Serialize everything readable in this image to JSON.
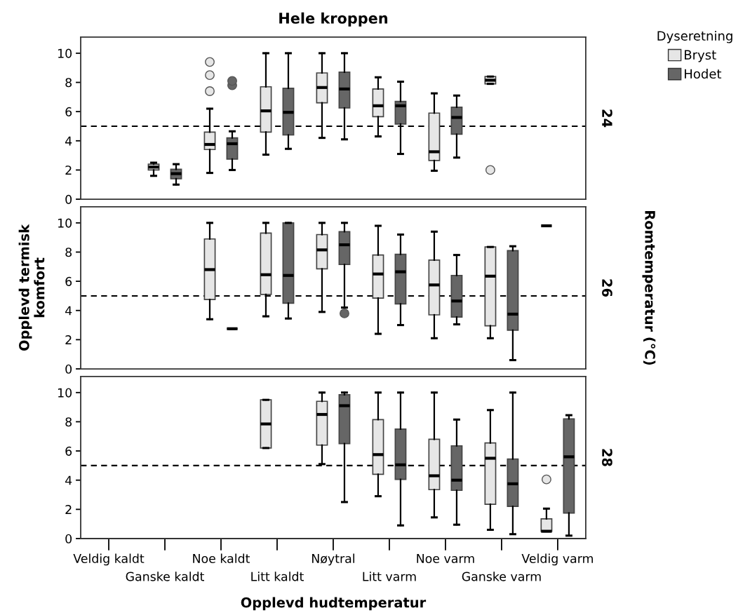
{
  "chart_data": [
    {
      "type": "box",
      "title": "Hele kroppen",
      "ylim": [
        0,
        11.1
      ],
      "yticks": [
        0,
        2,
        4,
        6,
        8,
        10
      ],
      "tick_labels": "y",
      "legend": "top right",
      "legend_title": "Dyseretning",
      "annotations": [
        "24"
      ],
      "ref_lines": [
        {
          "axis": "y",
          "value": 5,
          "line_style": "dashed",
          "color": "#000000"
        }
      ],
      "series": [
        {
          "name": "Bryst",
          "color": "#e6e6e6",
          "boxes": [
            null,
            {
              "low": 1.6,
              "q1": 2.0,
              "median": 2.2,
              "q3": 2.4,
              "high": 2.5
            },
            {
              "low": 1.8,
              "q1": 3.4,
              "median": 3.75,
              "q3": 4.6,
              "high": 6.2,
              "outliers": [
                7.4,
                8.5,
                9.4
              ]
            },
            {
              "low": 3.05,
              "q1": 4.6,
              "median": 6.05,
              "q3": 7.7,
              "high": 10
            },
            {
              "low": 4.2,
              "q1": 6.6,
              "median": 7.65,
              "q3": 8.65,
              "high": 10
            },
            {
              "low": 4.3,
              "q1": 5.65,
              "median": 6.4,
              "q3": 7.55,
              "high": 8.35
            },
            {
              "low": 1.95,
              "q1": 2.65,
              "median": 3.25,
              "q3": 5.9,
              "high": 7.25
            },
            {
              "low": 7.9,
              "q1": 7.9,
              "median": 8.15,
              "q3": 8.4,
              "high": 8.4,
              "outliers": [
                2.0
              ]
            },
            null
          ]
        },
        {
          "name": "Hodet",
          "color": "#666666",
          "boxes": [
            null,
            {
              "low": 1.0,
              "q1": 1.4,
              "median": 1.75,
              "q3": 2.05,
              "high": 2.4
            },
            {
              "low": 2.0,
              "q1": 2.75,
              "median": 3.8,
              "q3": 4.2,
              "high": 4.65,
              "outliers": [
                7.8,
                8.1
              ]
            },
            {
              "low": 3.45,
              "q1": 4.4,
              "median": 5.95,
              "q3": 7.6,
              "high": 10
            },
            {
              "low": 4.1,
              "q1": 6.25,
              "median": 7.55,
              "q3": 8.7,
              "high": 10
            },
            {
              "low": 3.1,
              "q1": 5.15,
              "median": 6.4,
              "q3": 6.7,
              "high": 8.05
            },
            {
              "low": 2.85,
              "q1": 4.45,
              "median": 5.6,
              "q3": 6.3,
              "high": 7.1
            },
            null,
            null
          ]
        }
      ]
    },
    {
      "type": "box",
      "ylim": [
        0,
        11.1
      ],
      "yticks": [
        0,
        2,
        4,
        6,
        8,
        10
      ],
      "tick_labels": "y",
      "ylabel": "Opplevd termisk\nkomfort",
      "y2label": "Romtemperatur (°C)",
      "annotations": [
        "26"
      ],
      "ref_lines": [
        {
          "axis": "y",
          "value": 5,
          "line_style": "dashed",
          "color": "#000000"
        }
      ],
      "series": [
        {
          "color": "#e6e6e6",
          "boxes": [
            null,
            null,
            {
              "low": 3.4,
              "q1": 4.75,
              "median": 6.8,
              "q3": 8.9,
              "high": 10
            },
            {
              "low": 3.6,
              "q1": 5.1,
              "median": 6.45,
              "q3": 9.3,
              "high": 10
            },
            {
              "low": 3.9,
              "q1": 6.85,
              "median": 8.15,
              "q3": 9.2,
              "high": 10
            },
            {
              "low": 2.4,
              "q1": 4.85,
              "median": 6.5,
              "q3": 7.8,
              "high": 9.8
            },
            {
              "low": 2.1,
              "q1": 3.7,
              "median": 5.75,
              "q3": 7.45,
              "high": 9.4
            },
            {
              "low": 2.1,
              "q1": 2.95,
              "median": 6.35,
              "q3": 8.35,
              "high": 8.35
            },
            {
              "low": 9.8,
              "q1": 9.8,
              "median": 9.8,
              "q3": 9.8,
              "high": 9.8
            }
          ]
        },
        {
          "color": "#666666",
          "boxes": [
            null,
            null,
            {
              "low": 2.75,
              "q1": 2.75,
              "median": 2.75,
              "q3": 2.75,
              "high": 2.75
            },
            {
              "low": 3.45,
              "q1": 4.5,
              "median": 6.4,
              "q3": 10,
              "high": 10
            },
            {
              "low": 4.2,
              "q1": 7.15,
              "median": 8.5,
              "q3": 9.4,
              "high": 10,
              "outliers": [
                3.8
              ]
            },
            {
              "low": 3.0,
              "q1": 4.45,
              "median": 6.65,
              "q3": 7.85,
              "high": 9.2
            },
            {
              "low": 3.05,
              "q1": 3.55,
              "median": 4.65,
              "q3": 6.4,
              "high": 7.8
            },
            {
              "low": 0.6,
              "q1": 2.65,
              "median": 3.75,
              "q3": 8.1,
              "high": 8.4
            },
            null
          ]
        }
      ]
    },
    {
      "type": "box",
      "categories": [
        "Veldig kaldt",
        "Ganske kaldt",
        "Noe kaldt",
        "Litt kaldt",
        "Nøytral",
        "Litt varm",
        "Noe varm",
        "Ganske varm",
        "Veldig varm"
      ],
      "ylim": [
        0,
        11.1
      ],
      "yticks": [
        0,
        2,
        4,
        6,
        8,
        10
      ],
      "xlabel": "Opplevd hudtemperatur",
      "annotations": [
        "28"
      ],
      "ref_lines": [
        {
          "axis": "y",
          "value": 5,
          "line_style": "dashed",
          "color": "#000000"
        }
      ],
      "series": [
        {
          "color": "#e6e6e6",
          "boxes": [
            null,
            null,
            null,
            {
              "low": 6.2,
              "q1": 6.2,
              "median": 7.85,
              "q3": 9.5,
              "high": 9.5
            },
            {
              "low": 5.1,
              "q1": 6.4,
              "median": 8.5,
              "q3": 9.4,
              "high": 10
            },
            {
              "low": 2.9,
              "q1": 4.4,
              "median": 5.75,
              "q3": 8.15,
              "high": 10
            },
            {
              "low": 1.45,
              "q1": 3.35,
              "median": 4.3,
              "q3": 6.8,
              "high": 10
            },
            {
              "low": 0.6,
              "q1": 2.35,
              "median": 5.5,
              "q3": 6.55,
              "high": 8.8
            },
            {
              "low": 0.5,
              "q1": 0.5,
              "median": 0.5,
              "q3": 1.35,
              "high": 2.05,
              "outliers": [
                4.05
              ]
            }
          ]
        },
        {
          "color": "#666666",
          "boxes": [
            null,
            null,
            null,
            null,
            {
              "low": 2.5,
              "q1": 6.5,
              "median": 9.1,
              "q3": 9.85,
              "high": 10
            },
            {
              "low": 0.9,
              "q1": 4.05,
              "median": 5.05,
              "q3": 7.5,
              "high": 10
            },
            {
              "low": 0.95,
              "q1": 3.3,
              "median": 4.0,
              "q3": 6.35,
              "high": 8.15
            },
            {
              "low": 0.3,
              "q1": 2.2,
              "median": 3.75,
              "q3": 5.45,
              "high": 10
            },
            {
              "low": 0.2,
              "q1": 1.75,
              "median": 5.6,
              "q3": 8.2,
              "high": 8.45
            }
          ]
        }
      ]
    }
  ]
}
